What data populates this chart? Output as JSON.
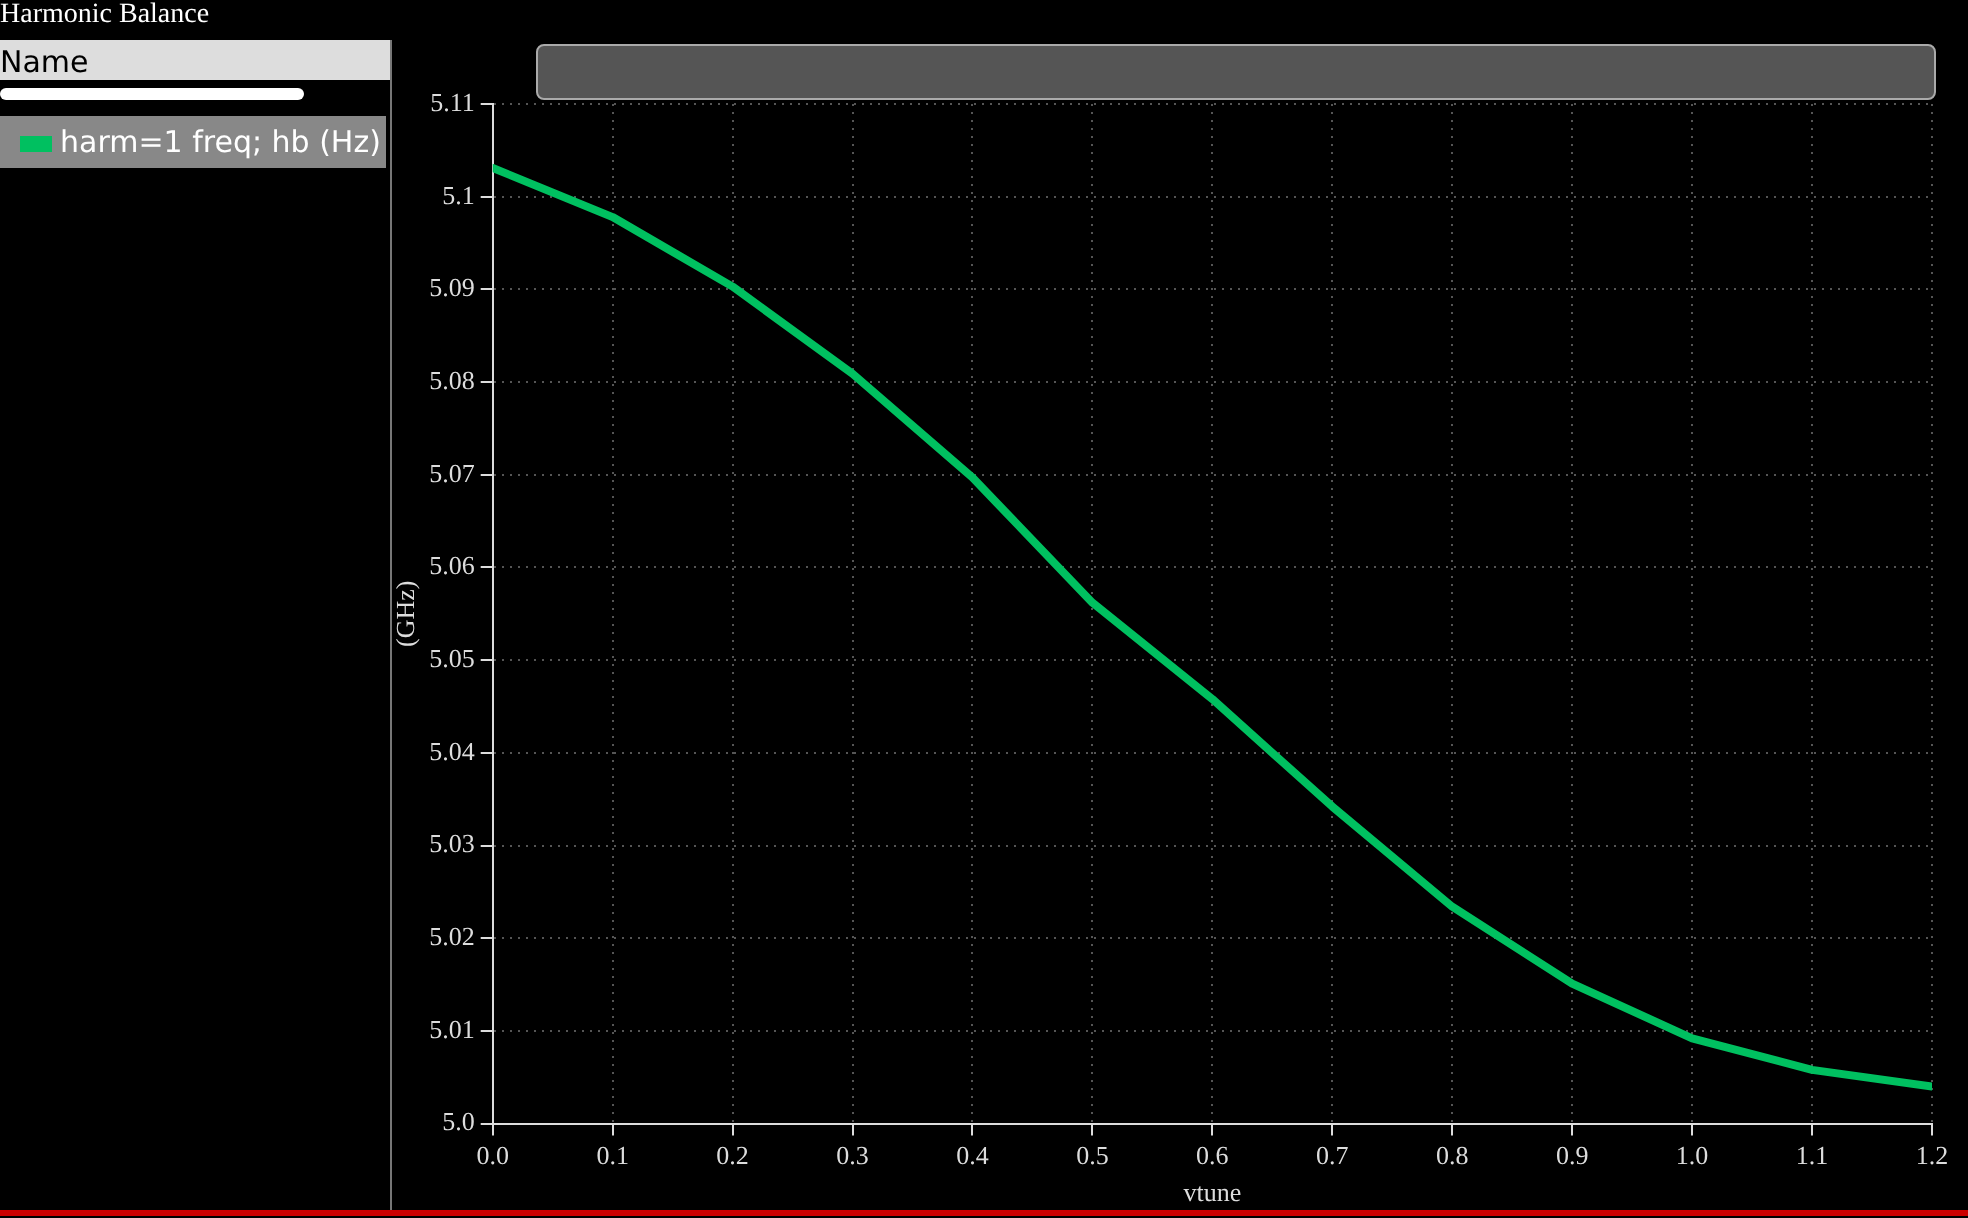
{
  "chart_data": {
    "type": "line",
    "title": "Harmonic Balance",
    "xlabel": "vtune",
    "ylabel": "(GHz)",
    "annotations": [
      "Name"
    ],
    "x": [
      0,
      0.1,
      0.2,
      0.3,
      0.4,
      0.5,
      0.6,
      0.7,
      0.8,
      0.9,
      1.0,
      1.1,
      1.2
    ],
    "series": [
      {
        "name": "harm=1 freq; hb (Hz)",
        "color": "#00c060",
        "values": [
          5.1031,
          5.0978,
          5.0903,
          5.0809,
          5.0697,
          5.0562,
          5.0458,
          5.0342,
          5.0234,
          5.0151,
          5.0092,
          5.0058,
          5.004
        ]
      }
    ],
    "xlim": [
      0,
      1.2
    ],
    "xticks": [
      {
        "value": 0,
        "label": "0.0"
      },
      {
        "value": 0.1,
        "label": "0.1"
      },
      {
        "value": 0.2,
        "label": "0.2"
      },
      {
        "value": 0.3,
        "label": "0.3"
      },
      {
        "value": 0.4,
        "label": "0.4"
      },
      {
        "value": 0.5,
        "label": "0.5"
      },
      {
        "value": 0.6,
        "label": "0.6"
      },
      {
        "value": 0.7,
        "label": "0.7"
      },
      {
        "value": 0.8,
        "label": "0.8"
      },
      {
        "value": 0.9,
        "label": "0.9"
      },
      {
        "value": 1.0,
        "label": "1.0"
      },
      {
        "value": 1.1,
        "label": "1.1"
      },
      {
        "value": 1.2,
        "label": "1.2"
      }
    ],
    "ylim": [
      5.0,
      5.11
    ],
    "yticks": [
      {
        "value": 5.0,
        "label": "5.0"
      },
      5.01,
      5.02,
      5.03,
      5.04,
      5.05,
      5.06,
      5.07,
      5.08,
      5.09,
      5.1,
      5.11
    ],
    "grid": true,
    "legend": "left",
    "marker": "none",
    "line_style": "solid"
  }
}
